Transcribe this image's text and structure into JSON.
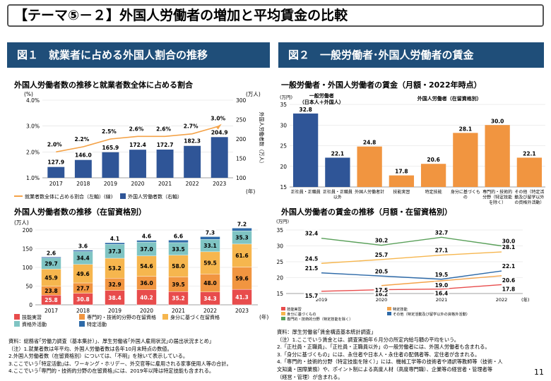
{
  "page": {
    "title": "【テーマ⑤－２】外国人労働者の増加と平均賃金の比較",
    "fig1_title": "図１　就業者に占める外国人割合の推移",
    "fig2_title": "図２　一般労働者･外国人労働者の賃金",
    "chart1_subtitle": "外国人労働者数の推移と就業者数全体に占める割合",
    "chart2_subtitle": "外国人労働者数の推移（在留資格別）",
    "chart3_subtitle": "一般労働者・外国人労働者の賃金（月額・2022年時点）",
    "chart4_subtitle": "外国人労働者の賃金の推移（月額・在留資格別）",
    "page_number": "11",
    "note_left": [
      "資料：総務省｢労働力調査（基本集計）｣、厚生労働省｢外国人雇用状況｣の届出状況まとめ｣",
      "（注）1.就業者数は年平均、外国人労働者数は各年10月末時点の数値。",
      "2.外国人労働者数（在留資格別）については、「不明」を除いて表示している。",
      "3.ここでいう｢特定活動｣は、ワーキング・ホリデー、外交官等に雇用される家事使用人等の合計。",
      "4.ここでいう｢専門的・技術的分野の在留資格｣には、2019年以降は特定技能も含まれる。"
    ],
    "note_right": [
      "資料：厚生労働省｢賃金構造基本統計調査｣",
      "（注）1.ここでいう賃金とは、調査実施年６月分の所定内給与額の平均をいう。",
      "2.「正社員・正職員」、「正社員・正職員以外」の一般労働者には、外国人労働者も含まれる。",
      "3.「身分に基づくもの」には、永住者や日本人・永住者の配偶者等、定住者が含まれる。",
      "4.「専門的・技術的分野（特定技能を除く）」には、機械工学等の技術者や通訳等教師等（技術・人",
      "文知識・国際業務）や、ポイント制による高度人材（高度専門職）、企業等の経営者・管理者等",
      "（経営・管理）が含まれる。"
    ]
  },
  "chart_data": [
    {
      "id": "fig1_top",
      "type": "bar",
      "categories": [
        "2017",
        "2018",
        "2019",
        "2020",
        "2021",
        "2022",
        "2023"
      ],
      "series": [
        {
          "name": "外国人労働者数（右軸）",
          "axis": "right",
          "values": [
            127.9,
            146.0,
            165.9,
            172.4,
            172.7,
            182.3,
            204.9
          ],
          "color": "#2f5597"
        },
        {
          "name": "就業者数全体に占める割合（左軸）(線)",
          "axis": "left",
          "type": "line",
          "values": [
            2.0,
            2.2,
            2.5,
            2.6,
            2.6,
            2.7,
            3.0
          ],
          "color": "#f4a349"
        }
      ],
      "point_labels": [
        "2.0%",
        "2.2%",
        "2.5%",
        "2.6%",
        "2.6%",
        "2.7%",
        "3.0%"
      ],
      "left_axis": {
        "unit": "(%)",
        "ylim": [
          1.0,
          4.0
        ],
        "ticks": [
          "1.0%",
          "2.0%",
          "3.0%",
          "4.0%"
        ]
      },
      "right_axis": {
        "unit": "(万人)",
        "ylim": [
          100,
          300
        ],
        "ticks": [
          "100",
          "150",
          "200",
          "250",
          "300"
        ],
        "label": "外国人労働者数（万人）"
      },
      "x_unit": "(年)",
      "legend": "bottom"
    },
    {
      "id": "fig1_bottom",
      "type": "bar",
      "stacked": true,
      "categories": [
        "2017",
        "2018",
        "2019",
        "2020",
        "2021",
        "2022",
        "2023"
      ],
      "series": [
        {
          "name": "技能実習",
          "values": [
            25.8,
            30.8,
            38.4,
            40.2,
            35.2,
            34.3,
            41.3
          ],
          "color": "#e84c4c"
        },
        {
          "name": "専門的・技術的分野の在留資格",
          "values": [
            23.8,
            27.7,
            32.9,
            36.0,
            39.5,
            48.0,
            59.6
          ],
          "color": "#f19540"
        },
        {
          "name": "身分に基づく在留資格",
          "values": [
            45.9,
            49.6,
            53.2,
            54.6,
            58.0,
            59.5,
            61.6
          ],
          "color": "#f6b64e"
        },
        {
          "name": "資格外活動",
          "values": [
            29.7,
            34.4,
            37.3,
            37.0,
            33.5,
            33.1,
            35.3
          ],
          "color": "#7fc4c3"
        },
        {
          "name": "特定活動",
          "values": [
            2.6,
            3.6,
            4.1,
            4.6,
            6.6,
            7.3,
            7.2
          ],
          "color": "#2e6aa8"
        }
      ],
      "y_unit": "(万人)",
      "ylim": [
        0,
        200
      ],
      "yticks": [
        "0",
        "50",
        "100",
        "150",
        "200"
      ],
      "x_unit": "(年)",
      "legend": "bottom"
    },
    {
      "id": "fig2_top",
      "type": "bar",
      "categories": [
        "正社員・正職員",
        "正社員・正職員以外",
        "外国人労働者計",
        "技能実習",
        "特定技能",
        "身分に基づくもの",
        "専門的・技術的分野（特定技能を除く）",
        "その他（特定活動及び留学以外の資格外活動）"
      ],
      "values": [
        32.8,
        22.1,
        24.8,
        17.8,
        20.6,
        28.1,
        30.0,
        22.1
      ],
      "colors": [
        "#2f5597",
        "#2f5597",
        "#f19540",
        "#f19540",
        "#f19540",
        "#f19540",
        "#f19540",
        "#f19540"
      ],
      "group_labels": [
        "一般労働者（日本人＋外国人）",
        "外国人労働者（在留資格別）"
      ],
      "y_unit": "(万円)",
      "ylim": [
        15,
        35
      ],
      "yticks": [
        "15",
        "20",
        "25",
        "30",
        "35"
      ]
    },
    {
      "id": "fig2_bottom",
      "type": "line",
      "x": [
        "2019",
        "2020",
        "2021",
        "2022"
      ],
      "series": [
        {
          "name": "技能実習",
          "values": [
            15.7,
            16.2,
            16.4,
            17.8
          ],
          "color": "#e84c4c"
        },
        {
          "name": "特定技能",
          "values": [
            null,
            17.5,
            19.0,
            20.6
          ],
          "color": "#f4a349"
        },
        {
          "name": "身分に基づくもの",
          "values": [
            24.5,
            25.7,
            27.1,
            28.1
          ],
          "color": "#f6b64e"
        },
        {
          "name": "専門的・技術的分野（特定技能を除く）",
          "values": [
            32.4,
            30.2,
            32.7,
            30.0
          ],
          "color": "#5aa05a"
        },
        {
          "name": "その他（特定活動及び留学以外の資格外活動）",
          "values": [
            21.5,
            20.5,
            19.5,
            22.1
          ],
          "color": "#2e6aa8"
        }
      ],
      "y_unit": "(万円)",
      "ylim": [
        15,
        35
      ],
      "yticks": [
        "15",
        "20",
        "25",
        "30",
        "35"
      ],
      "x_unit": "(年)",
      "legend": "bottom"
    }
  ]
}
